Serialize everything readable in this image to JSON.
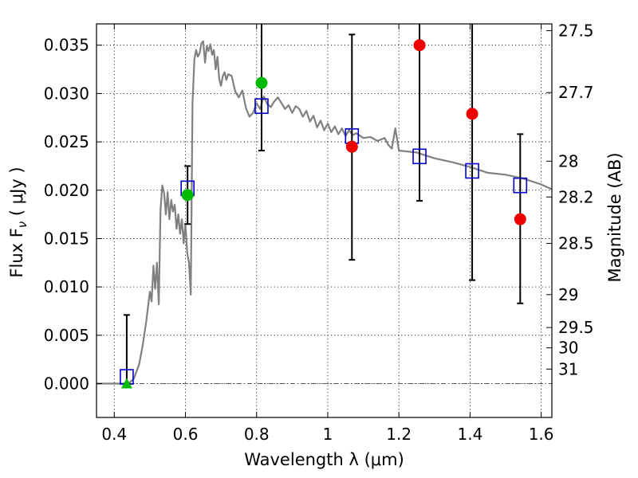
{
  "chart_data": {
    "type": "scatter",
    "xlabel": "Wavelength  λ (μm)",
    "ylabel": "Flux  F",
    "ylabel_sub": "ν",
    "ylabel_unit": "  ( μJy )",
    "ylabel_right": "Magnitude (AB)",
    "xlim": [
      0.35,
      1.63
    ],
    "ylim": [
      -0.0035,
      0.0372
    ],
    "grid": true,
    "x_ticks": [
      0.4,
      0.6,
      0.8,
      1.0,
      1.2,
      1.4,
      1.6
    ],
    "x_tick_labels": [
      "0.4",
      "0.6",
      "0.8",
      "1",
      "1.2",
      "1.4",
      "1.6"
    ],
    "y_ticks": [
      0.0,
      0.005,
      0.01,
      0.015,
      0.02,
      0.025,
      0.03,
      0.035
    ],
    "y_tick_labels": [
      "0.000",
      "0.005",
      "0.010",
      "0.015",
      "0.020",
      "0.025",
      "0.030",
      "0.035"
    ],
    "right_ticks": [
      {
        "flux": 0.0365,
        "label": "27.5"
      },
      {
        "flux": 0.0301,
        "label": "27.7"
      },
      {
        "flux": 0.023,
        "label": "28"
      },
      {
        "flux": 0.0193,
        "label": "28.2"
      },
      {
        "flux": 0.0145,
        "label": "28.5"
      },
      {
        "flux": 0.0092,
        "label": "29"
      },
      {
        "flux": 0.0058,
        "label": "29.5"
      },
      {
        "flux": 0.0037,
        "label": "30"
      },
      {
        "flux": 0.0015,
        "label": "31"
      }
    ],
    "model_color": "#808080",
    "model_box_color": "#0000cc",
    "obs_detected_color": "#00bb00",
    "obs_other_color": "#ee0000",
    "zero_line": true,
    "sed_model": [
      [
        0.35,
        0.0
      ],
      [
        0.44,
        0.0
      ],
      [
        0.455,
        0.0005
      ],
      [
        0.47,
        0.002
      ],
      [
        0.48,
        0.004
      ],
      [
        0.49,
        0.0065
      ],
      [
        0.5,
        0.0095
      ],
      [
        0.505,
        0.0085
      ],
      [
        0.51,
        0.0122
      ],
      [
        0.515,
        0.0098
      ],
      [
        0.52,
        0.0125
      ],
      [
        0.525,
        0.0082
      ],
      [
        0.53,
        0.018
      ],
      [
        0.535,
        0.0205
      ],
      [
        0.54,
        0.0197
      ],
      [
        0.545,
        0.0175
      ],
      [
        0.55,
        0.0198
      ],
      [
        0.555,
        0.017
      ],
      [
        0.56,
        0.019
      ],
      [
        0.565,
        0.0178
      ],
      [
        0.57,
        0.0185
      ],
      [
        0.575,
        0.016
      ],
      [
        0.58,
        0.0175
      ],
      [
        0.585,
        0.0155
      ],
      [
        0.59,
        0.017
      ],
      [
        0.595,
        0.0145
      ],
      [
        0.6,
        0.0165
      ],
      [
        0.605,
        0.0135
      ],
      [
        0.61,
        0.0125
      ],
      [
        0.615,
        0.0092
      ],
      [
        0.62,
        0.029
      ],
      [
        0.625,
        0.0335
      ],
      [
        0.63,
        0.0345
      ],
      [
        0.635,
        0.0338
      ],
      [
        0.64,
        0.0342
      ],
      [
        0.645,
        0.0352
      ],
      [
        0.65,
        0.0354
      ],
      [
        0.655,
        0.0332
      ],
      [
        0.66,
        0.0349
      ],
      [
        0.665,
        0.0344
      ],
      [
        0.67,
        0.0351
      ],
      [
        0.675,
        0.034
      ],
      [
        0.68,
        0.0345
      ],
      [
        0.685,
        0.0325
      ],
      [
        0.69,
        0.0338
      ],
      [
        0.695,
        0.0315
      ],
      [
        0.7,
        0.0308
      ],
      [
        0.705,
        0.0318
      ],
      [
        0.71,
        0.0322
      ],
      [
        0.715,
        0.0314
      ],
      [
        0.72,
        0.032
      ],
      [
        0.73,
        0.0318
      ],
      [
        0.74,
        0.0302
      ],
      [
        0.75,
        0.0296
      ],
      [
        0.76,
        0.0303
      ],
      [
        0.77,
        0.0285
      ],
      [
        0.78,
        0.0276
      ],
      [
        0.79,
        0.028
      ],
      [
        0.8,
        0.029
      ],
      [
        0.81,
        0.0284
      ],
      [
        0.82,
        0.0297
      ],
      [
        0.83,
        0.0289
      ],
      [
        0.84,
        0.0286
      ],
      [
        0.85,
        0.0292
      ],
      [
        0.86,
        0.0296
      ],
      [
        0.87,
        0.029
      ],
      [
        0.88,
        0.0284
      ],
      [
        0.89,
        0.0288
      ],
      [
        0.9,
        0.028
      ],
      [
        0.91,
        0.0287
      ],
      [
        0.92,
        0.0284
      ],
      [
        0.93,
        0.0276
      ],
      [
        0.94,
        0.0282
      ],
      [
        0.95,
        0.0271
      ],
      [
        0.96,
        0.0277
      ],
      [
        0.97,
        0.0265
      ],
      [
        0.98,
        0.0272
      ],
      [
        0.99,
        0.0262
      ],
      [
        1.0,
        0.0269
      ],
      [
        1.01,
        0.026
      ],
      [
        1.02,
        0.0266
      ],
      [
        1.03,
        0.0258
      ],
      [
        1.04,
        0.0264
      ],
      [
        1.05,
        0.0256
      ],
      [
        1.06,
        0.0262
      ],
      [
        1.07,
        0.0257
      ],
      [
        1.08,
        0.0259
      ],
      [
        1.1,
        0.0254
      ],
      [
        1.12,
        0.0255
      ],
      [
        1.14,
        0.0251
      ],
      [
        1.16,
        0.0254
      ],
      [
        1.17,
        0.0247
      ],
      [
        1.18,
        0.0243
      ],
      [
        1.19,
        0.0264
      ],
      [
        1.2,
        0.0241
      ],
      [
        1.25,
        0.0239
      ],
      [
        1.3,
        0.0233
      ],
      [
        1.35,
        0.0229
      ],
      [
        1.4,
        0.0224
      ],
      [
        1.45,
        0.0218
      ],
      [
        1.5,
        0.0216
      ],
      [
        1.55,
        0.0212
      ],
      [
        1.6,
        0.0206
      ],
      [
        1.63,
        0.0201
      ]
    ],
    "model_fluxes": [
      {
        "x": 0.435,
        "y": 0.0007
      },
      {
        "x": 0.606,
        "y": 0.0202
      },
      {
        "x": 0.814,
        "y": 0.0287
      },
      {
        "x": 1.068,
        "y": 0.0256
      },
      {
        "x": 1.258,
        "y": 0.0235
      },
      {
        "x": 1.406,
        "y": 0.022
      },
      {
        "x": 1.541,
        "y": 0.0205
      }
    ],
    "observations": [
      {
        "x": 0.435,
        "y": 0.0,
        "yerr_low": 0.0,
        "yerr_high": 0.0071,
        "marker": "triangle",
        "detected": true
      },
      {
        "x": 0.606,
        "y": 0.0195,
        "yerr_low": 0.0165,
        "yerr_high": 0.0225,
        "marker": "circle",
        "detected": true
      },
      {
        "x": 0.814,
        "y": 0.0311,
        "yerr_low": 0.0241,
        "yerr_high": 0.0372,
        "marker": "circle",
        "detected": true
      },
      {
        "x": 1.068,
        "y": 0.0245,
        "yerr_low": 0.0128,
        "yerr_high": 0.0361,
        "marker": "circle",
        "detected": false
      },
      {
        "x": 1.258,
        "y": 0.035,
        "yerr_low": 0.0189,
        "yerr_high": 0.0372,
        "marker": "circle",
        "detected": false
      },
      {
        "x": 1.406,
        "y": 0.0279,
        "yerr_low": 0.0107,
        "yerr_high": 0.0372,
        "marker": "circle",
        "detected": false
      },
      {
        "x": 1.541,
        "y": 0.017,
        "yerr_low": 0.0083,
        "yerr_high": 0.0258,
        "marker": "circle",
        "detected": false
      }
    ]
  }
}
